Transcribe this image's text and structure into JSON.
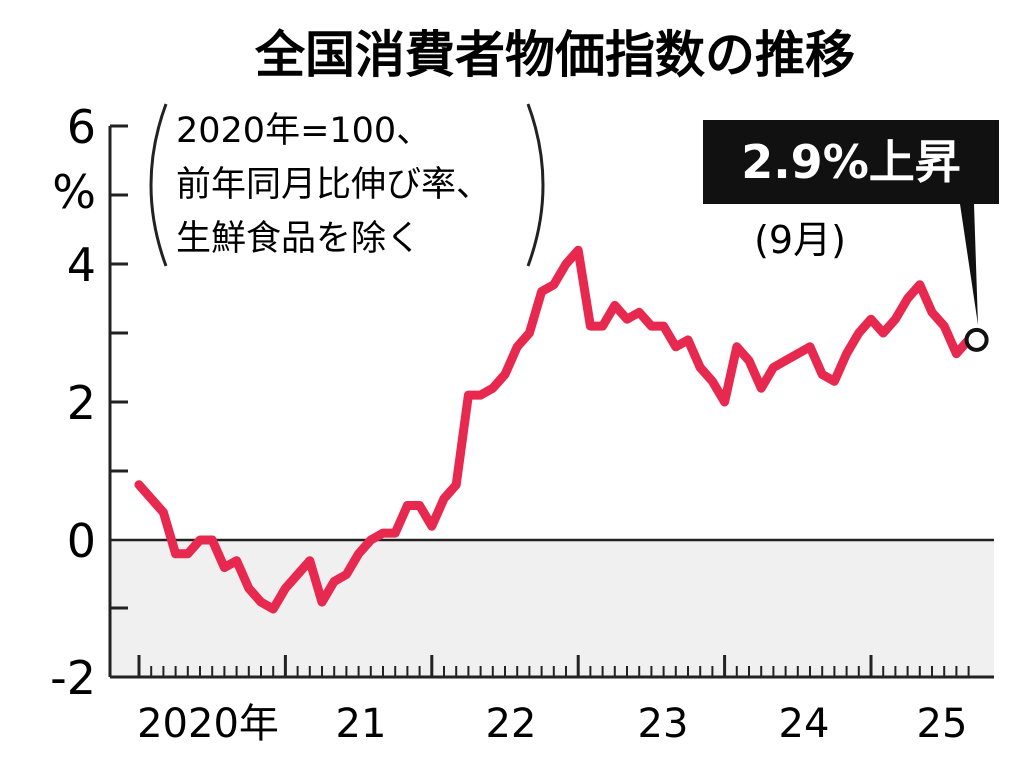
{
  "chart_data": {
    "type": "line",
    "title": "全国消費者物価指数の推移",
    "note_lines": [
      "2020年=100、",
      "前年同月比伸び率、",
      "生鮮食品を除く"
    ],
    "y_unit": "%",
    "ylim": [
      -2,
      6
    ],
    "y_ticks": [
      6,
      4,
      2,
      0,
      -2
    ],
    "x_tick_labels": [
      "2020年",
      "21",
      "22",
      "23",
      "24",
      "25"
    ],
    "x_start": "2020-01",
    "x_end": "2025-09",
    "negative_region_shaded": true,
    "series": [
      {
        "color": "#e8294f",
        "values": [
          0.8,
          0.6,
          0.4,
          -0.2,
          -0.2,
          0.0,
          0.0,
          -0.4,
          -0.3,
          -0.7,
          -0.9,
          -1.0,
          -0.7,
          -0.5,
          -0.3,
          -0.9,
          -0.6,
          -0.5,
          -0.2,
          0.0,
          0.1,
          0.1,
          0.5,
          0.5,
          0.2,
          0.6,
          0.8,
          2.1,
          2.1,
          2.2,
          2.4,
          2.8,
          3.0,
          3.6,
          3.7,
          4.0,
          4.2,
          3.1,
          3.1,
          3.4,
          3.2,
          3.3,
          3.1,
          3.1,
          2.8,
          2.9,
          2.5,
          2.3,
          2.0,
          2.8,
          2.6,
          2.2,
          2.5,
          2.6,
          2.7,
          2.8,
          2.4,
          2.3,
          2.7,
          3.0,
          3.2,
          3.0,
          3.2,
          3.5,
          3.7,
          3.3,
          3.1,
          2.7,
          2.9
        ]
      }
    ],
    "callout": {
      "label": "2.9%上昇",
      "month_label": "(9月)",
      "value": 2.9
    }
  }
}
